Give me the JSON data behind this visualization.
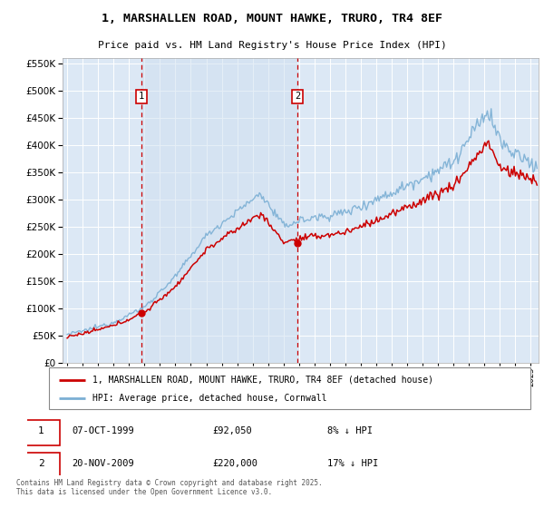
{
  "title": "1, MARSHALLEN ROAD, MOUNT HAWKE, TRURO, TR4 8EF",
  "subtitle": "Price paid vs. HM Land Registry's House Price Index (HPI)",
  "legend_entry1": "1, MARSHALLEN ROAD, MOUNT HAWKE, TRURO, TR4 8EF (detached house)",
  "legend_entry2": "HPI: Average price, detached house, Cornwall",
  "annotation1": {
    "number": "1",
    "date": "07-OCT-1999",
    "price": "£92,050",
    "note": "8% ↓ HPI"
  },
  "annotation2": {
    "number": "2",
    "date": "20-NOV-2009",
    "price": "£220,000",
    "note": "17% ↓ HPI"
  },
  "footnote": "Contains HM Land Registry data © Crown copyright and database right 2025.\nThis data is licensed under the Open Government Licence v3.0.",
  "red_color": "#cc0000",
  "blue_color": "#7bafd4",
  "bg_color": "#dce8f5",
  "highlight_bg": "#cfe0f0",
  "vline_color": "#cc0000",
  "marker1_x": 1999.8,
  "marker2_x": 2009.9,
  "marker1_y": 92050,
  "marker2_y": 220000,
  "ylim": [
    0,
    560000
  ],
  "xlim_start": 1994.7,
  "xlim_end": 2025.5
}
